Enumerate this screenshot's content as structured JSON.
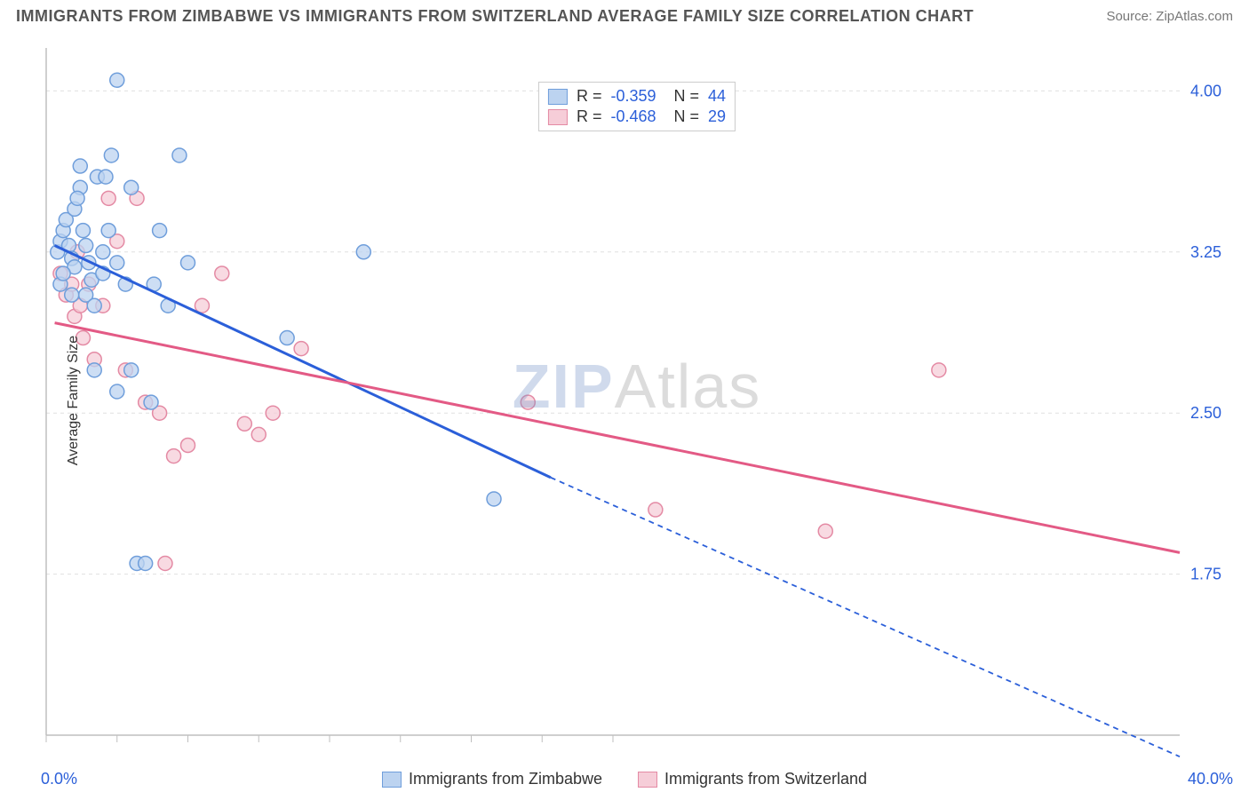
{
  "header": {
    "title": "IMMIGRANTS FROM ZIMBABWE VS IMMIGRANTS FROM SWITZERLAND AVERAGE FAMILY SIZE CORRELATION CHART",
    "source_label": "Source: ZipAtlas.com"
  },
  "watermark": {
    "z": "ZIP",
    "rest": "Atlas"
  },
  "chart": {
    "type": "scatter",
    "ylabel": "Average Family Size",
    "xlim": [
      0.0,
      40.0
    ],
    "ylim": [
      1.0,
      4.2
    ],
    "x_tick_start_label": "0.0%",
    "x_tick_end_label": "40.0%",
    "x_minor_ticks": [
      0,
      2.5,
      5,
      7.5,
      10,
      12.5,
      15,
      17.5,
      20
    ],
    "y_ticks": [
      1.75,
      2.5,
      3.25,
      4.0
    ],
    "y_tick_labels": [
      "1.75",
      "2.50",
      "3.25",
      "4.00"
    ],
    "grid_color": "#e0e0e0",
    "axis_color": "#bfbfbf",
    "tick_font_color": "#2b5fd9",
    "background": "#ffffff",
    "marker_radius": 8,
    "marker_stroke_width": 1.5,
    "line_width": 3,
    "dash_pattern": "6,5",
    "series": [
      {
        "name": "Immigrants from Zimbabwe",
        "fill": "#bcd3f0",
        "stroke": "#6f9edb",
        "line_color": "#2b5fd9",
        "R": "-0.359",
        "N": "44",
        "trend": {
          "x1": 0.3,
          "y1": 3.28,
          "x2": 17.8,
          "y2": 2.2,
          "x2_ext": 40.0,
          "y2_ext": 0.9
        },
        "points": [
          [
            0.4,
            3.25
          ],
          [
            0.5,
            3.3
          ],
          [
            0.6,
            3.35
          ],
          [
            0.7,
            3.4
          ],
          [
            0.8,
            3.28
          ],
          [
            0.9,
            3.22
          ],
          [
            1.0,
            3.18
          ],
          [
            1.0,
            3.45
          ],
          [
            1.2,
            3.55
          ],
          [
            1.3,
            3.35
          ],
          [
            1.4,
            3.28
          ],
          [
            1.5,
            3.2
          ],
          [
            1.6,
            3.12
          ],
          [
            1.7,
            2.7
          ],
          [
            1.8,
            3.6
          ],
          [
            2.0,
            3.25
          ],
          [
            2.0,
            3.15
          ],
          [
            2.2,
            3.35
          ],
          [
            2.3,
            3.7
          ],
          [
            2.5,
            3.2
          ],
          [
            2.5,
            2.6
          ],
          [
            2.5,
            4.05
          ],
          [
            2.8,
            3.1
          ],
          [
            3.0,
            3.55
          ],
          [
            3.0,
            2.7
          ],
          [
            3.2,
            1.8
          ],
          [
            3.5,
            1.8
          ],
          [
            3.7,
            2.55
          ],
          [
            3.8,
            3.1
          ],
          [
            4.0,
            3.35
          ],
          [
            4.3,
            3.0
          ],
          [
            4.7,
            3.7
          ],
          [
            5.0,
            3.2
          ],
          [
            8.5,
            2.85
          ],
          [
            11.2,
            3.25
          ],
          [
            15.8,
            2.1
          ],
          [
            1.2,
            3.65
          ],
          [
            0.5,
            3.1
          ],
          [
            0.9,
            3.05
          ],
          [
            1.1,
            3.5
          ],
          [
            1.4,
            3.05
          ],
          [
            0.6,
            3.15
          ],
          [
            2.1,
            3.6
          ],
          [
            1.7,
            3.0
          ]
        ]
      },
      {
        "name": "Immigrants from Switzerland",
        "fill": "#f6cdd8",
        "stroke": "#e48aa4",
        "line_color": "#e35a85",
        "R": "-0.468",
        "N": "29",
        "trend": {
          "x1": 0.3,
          "y1": 2.92,
          "x2": 40.0,
          "y2": 1.85,
          "x2_ext": 40.0,
          "y2_ext": 1.85
        },
        "points": [
          [
            0.5,
            3.15
          ],
          [
            0.7,
            3.05
          ],
          [
            0.9,
            3.1
          ],
          [
            1.0,
            2.95
          ],
          [
            1.1,
            3.25
          ],
          [
            1.2,
            3.0
          ],
          [
            1.3,
            2.85
          ],
          [
            1.5,
            3.1
          ],
          [
            1.7,
            2.75
          ],
          [
            2.0,
            3.0
          ],
          [
            2.2,
            3.5
          ],
          [
            2.5,
            3.3
          ],
          [
            2.8,
            2.7
          ],
          [
            3.2,
            3.5
          ],
          [
            3.5,
            2.55
          ],
          [
            4.0,
            2.5
          ],
          [
            4.2,
            1.8
          ],
          [
            4.5,
            2.3
          ],
          [
            5.0,
            2.35
          ],
          [
            5.5,
            3.0
          ],
          [
            6.2,
            3.15
          ],
          [
            7.0,
            2.45
          ],
          [
            7.5,
            2.4
          ],
          [
            8.0,
            2.5
          ],
          [
            9.0,
            2.8
          ],
          [
            17.0,
            2.55
          ],
          [
            21.5,
            2.05
          ],
          [
            27.5,
            1.95
          ],
          [
            31.5,
            2.7
          ]
        ]
      }
    ],
    "legend_bottom": {
      "items": [
        {
          "label": "Immigrants from Zimbabwe",
          "fill": "#bcd3f0",
          "stroke": "#6f9edb"
        },
        {
          "label": "Immigrants from Switzerland",
          "fill": "#f6cdd8",
          "stroke": "#e48aa4"
        }
      ]
    },
    "legend_top": {
      "border": "#cccccc",
      "rows": [
        {
          "fill": "#bcd3f0",
          "stroke": "#6f9edb",
          "R_label": "R =",
          "R": "-0.359",
          "N_label": "N =",
          "N": "44"
        },
        {
          "fill": "#f6cdd8",
          "stroke": "#e48aa4",
          "R_label": "R =",
          "R": "-0.468",
          "N_label": "N =",
          "N": "29"
        }
      ]
    }
  }
}
